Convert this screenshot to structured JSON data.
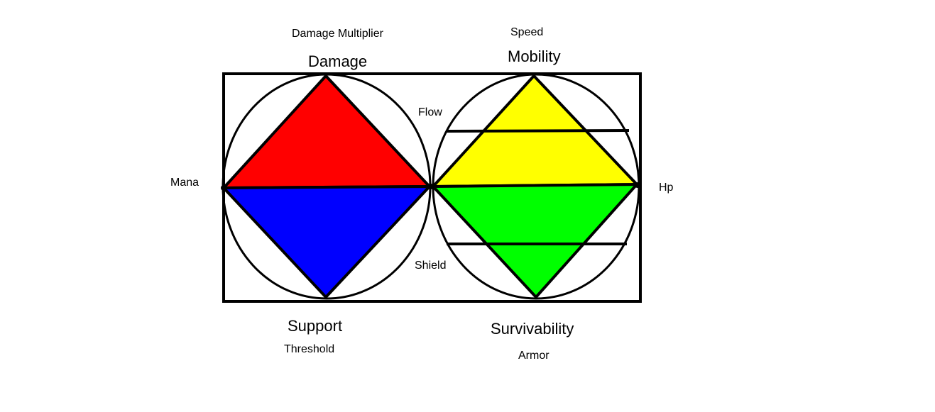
{
  "labels": {
    "damage_multiplier": "Damage Multiplier",
    "damage": "Damage",
    "speed": "Speed",
    "mobility": "Mobility",
    "flow": "Flow",
    "mana": "Mana",
    "hp": "Hp",
    "shield": "Shield",
    "support": "Support",
    "threshold": "Threshold",
    "survivability": "Survivability",
    "armor": "Armor"
  },
  "colors": {
    "outline": "#000000",
    "damage_fill": "#ff0000",
    "support_fill": "#0000ff",
    "mobility_fill": "#ffff00",
    "survivability_fill": "#00ff00",
    "background": "#ffffff"
  }
}
